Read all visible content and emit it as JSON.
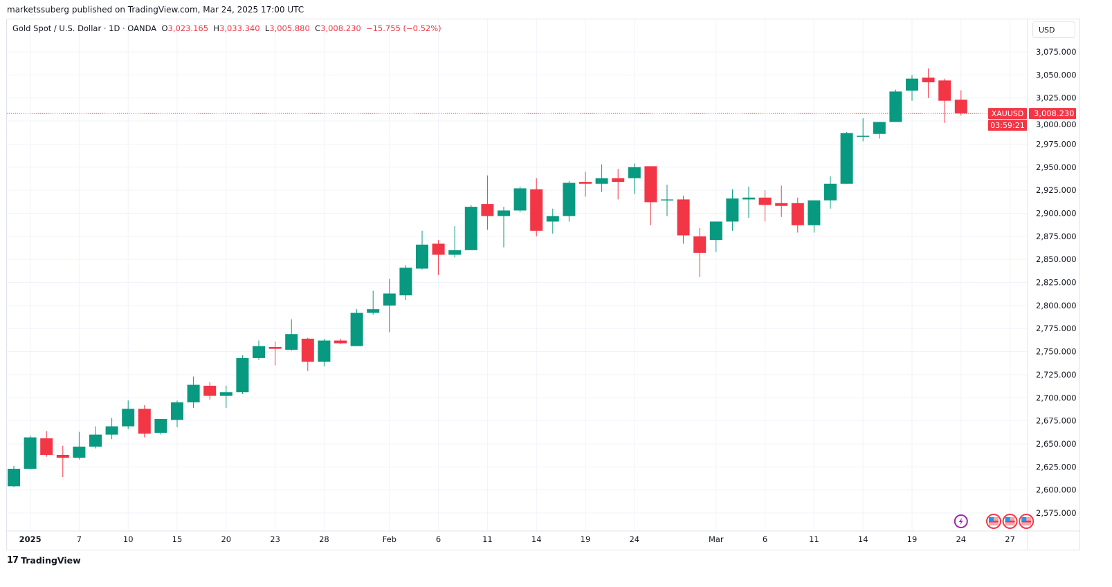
{
  "header": {
    "published": "marketssuberg published on TradingView.com, Mar 24, 2025 17:00 UTC"
  },
  "legend": {
    "symbol": "Gold Spot / U.S. Dollar · 1D · OANDA",
    "o_label": "O",
    "o": "3,023.165",
    "h_label": "H",
    "h": "3,033.340",
    "l_label": "L",
    "l": "3,005.880",
    "c_label": "C",
    "c": "3,008.230",
    "change": "−15.755 (−0.52%)"
  },
  "currency_button": "USD",
  "price_tag": {
    "symbol": "XAUUSD",
    "price": "3,008.230",
    "countdown": "03:59:21"
  },
  "footer": {
    "brand": "TradingView"
  },
  "colors": {
    "up": "#089981",
    "down": "#f23645",
    "grid": "#f0f3fa",
    "event": "#9c27b0"
  },
  "chart_data": {
    "type": "candlestick",
    "title": "Gold Spot / U.S. Dollar · 1D · OANDA",
    "ylim": [
      2555,
      3110
    ],
    "yticks": [
      2575,
      2600,
      2625,
      2650,
      2675,
      2700,
      2725,
      2750,
      2775,
      2800,
      2825,
      2850,
      2875,
      2900,
      2925,
      2950,
      2975,
      3000,
      3025,
      3050,
      3075
    ],
    "ytick_labels": [
      "2,575.000",
      "2,600.000",
      "2,625.000",
      "2,650.000",
      "2,675.000",
      "2,700.000",
      "2,725.000",
      "2,750.000",
      "2,775.000",
      "2,800.000",
      "2,825.000",
      "2,850.000",
      "2,875.000",
      "2,900.000",
      "2,925.000",
      "2,950.000",
      "2,975.000",
      "3,000.000",
      "3,025.000",
      "3,050.000",
      "3,075.000"
    ],
    "xticks": [
      {
        "i": 1,
        "label": "2025",
        "bold": true
      },
      {
        "i": 4,
        "label": "7"
      },
      {
        "i": 7,
        "label": "10"
      },
      {
        "i": 10,
        "label": "15"
      },
      {
        "i": 13,
        "label": "20"
      },
      {
        "i": 16,
        "label": "23"
      },
      {
        "i": 19,
        "label": "28"
      },
      {
        "i": 23,
        "label": "Feb"
      },
      {
        "i": 26,
        "label": "6"
      },
      {
        "i": 29,
        "label": "11"
      },
      {
        "i": 32,
        "label": "14"
      },
      {
        "i": 35,
        "label": "19"
      },
      {
        "i": 38,
        "label": "24"
      },
      {
        "i": 43,
        "label": "Mar"
      },
      {
        "i": 46,
        "label": "6"
      },
      {
        "i": 49,
        "label": "11"
      },
      {
        "i": 52,
        "label": "14"
      },
      {
        "i": 55,
        "label": "19"
      },
      {
        "i": 58,
        "label": "24"
      },
      {
        "i": 61,
        "label": "27"
      }
    ],
    "last_price": 3008.23,
    "ohlc": [
      [
        2604,
        2626,
        2603,
        2623
      ],
      [
        2623,
        2659,
        2622,
        2657
      ],
      [
        2656,
        2664,
        2636,
        2638
      ],
      [
        2638,
        2648,
        2614,
        2635
      ],
      [
        2635,
        2663,
        2633,
        2647
      ],
      [
        2647,
        2669,
        2645,
        2660
      ],
      [
        2660,
        2678,
        2655,
        2669
      ],
      [
        2669,
        2697,
        2666,
        2688
      ],
      [
        2688,
        2692,
        2657,
        2661
      ],
      [
        2662,
        2677,
        2660,
        2677
      ],
      [
        2676,
        2697,
        2668,
        2695
      ],
      [
        2695,
        2723,
        2689,
        2714
      ],
      [
        2713,
        2717,
        2698,
        2702
      ],
      [
        2702,
        2713,
        2689,
        2706
      ],
      [
        2706,
        2746,
        2704,
        2743
      ],
      [
        2743,
        2762,
        2741,
        2756
      ],
      [
        2755,
        2761,
        2735,
        2753
      ],
      [
        2752,
        2785,
        2751,
        2769
      ],
      [
        2764,
        2765,
        2729,
        2739
      ],
      [
        2739,
        2764,
        2734,
        2762
      ],
      [
        2762,
        2764,
        2758,
        2759
      ],
      [
        2756,
        2796,
        2756,
        2792
      ],
      [
        2792,
        2816,
        2790,
        2796
      ],
      [
        2800,
        2829,
        2771,
        2813
      ],
      [
        2811,
        2844,
        2806,
        2841
      ],
      [
        2840,
        2881,
        2839,
        2866
      ],
      [
        2867,
        2871,
        2833,
        2855
      ],
      [
        2855,
        2886,
        2852,
        2860
      ],
      [
        2860,
        2909,
        2860,
        2907
      ],
      [
        2910,
        2941,
        2882,
        2897
      ],
      [
        2897,
        2907,
        2863,
        2903
      ],
      [
        2903,
        2929,
        2901,
        2927
      ],
      [
        2926,
        2938,
        2875,
        2881
      ],
      [
        2891,
        2905,
        2878,
        2897
      ],
      [
        2897,
        2935,
        2891,
        2933
      ],
      [
        2934,
        2945,
        2918,
        2932
      ],
      [
        2932,
        2953,
        2923,
        2938
      ],
      [
        2938,
        2948,
        2915,
        2934
      ],
      [
        2938,
        2954,
        2921,
        2950
      ],
      [
        2951,
        2951,
        2887,
        2912
      ],
      [
        2914,
        2931,
        2897,
        2915
      ],
      [
        2915,
        2919,
        2867,
        2876
      ],
      [
        2875,
        2884,
        2831,
        2857
      ],
      [
        2871,
        2891,
        2858,
        2891
      ],
      [
        2891,
        2926,
        2881,
        2916
      ],
      [
        2915,
        2929,
        2895,
        2917
      ],
      [
        2917,
        2925,
        2891,
        2909
      ],
      [
        2911,
        2930,
        2896,
        2908
      ],
      [
        2911,
        2917,
        2879,
        2887
      ],
      [
        2887,
        2914,
        2879,
        2914
      ],
      [
        2914,
        2940,
        2905,
        2932
      ],
      [
        2932,
        2988,
        2932,
        2987
      ],
      [
        2983,
        3003,
        2978,
        2984
      ],
      [
        2986,
        2999,
        2981,
        2999
      ],
      [
        2999,
        3034,
        2999,
        3032
      ],
      [
        3033,
        3050,
        3022,
        3046
      ],
      [
        3047,
        3057,
        3025,
        3042
      ],
      [
        3044,
        3046,
        2998,
        3022
      ],
      [
        3023.165,
        3033.34,
        3005.88,
        3008.23
      ]
    ],
    "events": [
      {
        "i": 58,
        "type": "lightning"
      },
      {
        "i": 60,
        "type": "us-flag"
      },
      {
        "i": 61,
        "type": "us-flag"
      },
      {
        "i": 62,
        "type": "us-flag"
      }
    ]
  }
}
